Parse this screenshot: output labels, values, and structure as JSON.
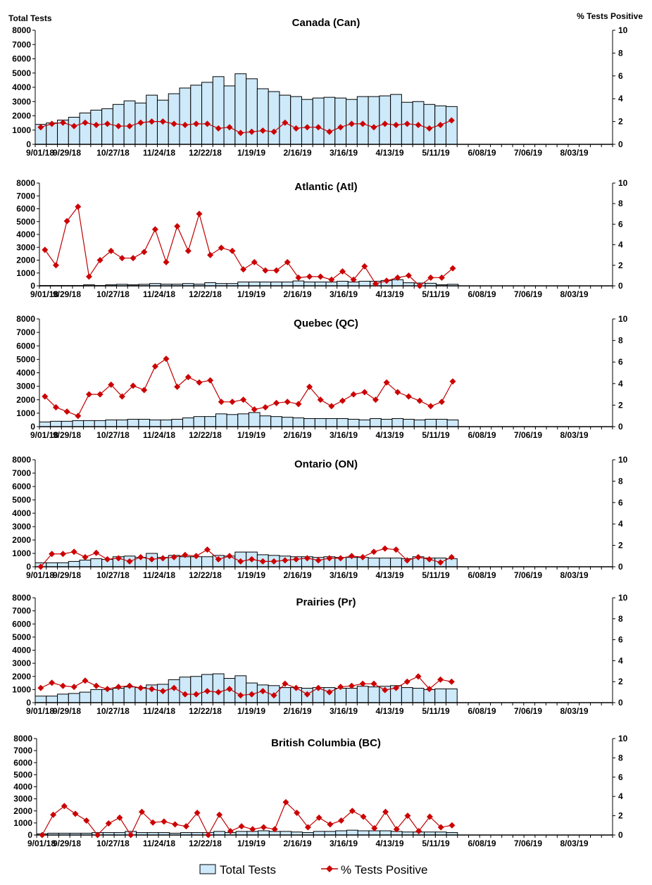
{
  "axis_titles": {
    "left": "Total Tests",
    "right": "% Tests Positive"
  },
  "legend": {
    "bars": "Total Tests",
    "line": "% Tests Positive",
    "placement": "bottom"
  },
  "colors": {
    "bar_fill": "#cde9fa",
    "bar_stroke": "#000000",
    "line": "#c00000",
    "marker": "#cc0000"
  },
  "chart_data": [
    {
      "type": "bar+line",
      "title": "Canada (Can)",
      "x_tick_labels": [
        "9/01/18",
        "9/29/18",
        "10/27/18",
        "11/24/18",
        "12/22/18",
        "1/19/19",
        "2/16/19",
        "3/16/19",
        "4/13/19",
        "5/11/19",
        "6/08/19",
        "7/06/19",
        "8/03/19"
      ],
      "ylim_left": [
        0,
        8000
      ],
      "ylim_right": [
        0,
        10
      ],
      "weeks_on_axis": 52,
      "total_tests": [
        1400,
        1500,
        1700,
        1900,
        2200,
        2400,
        2500,
        2800,
        3050,
        2900,
        3450,
        3100,
        3550,
        3950,
        4150,
        4350,
        4750,
        4100,
        4950,
        4600,
        3900,
        3700,
        3450,
        3350,
        3150,
        3250,
        3300,
        3250,
        3150,
        3350,
        3350,
        3400,
        3500,
        2950,
        3000,
        2800,
        2700,
        2650
      ],
      "pct_positive": [
        1.5,
        1.8,
        1.9,
        1.6,
        1.9,
        1.7,
        1.8,
        1.6,
        1.6,
        1.9,
        2.0,
        2.0,
        1.8,
        1.7,
        1.8,
        1.8,
        1.4,
        1.5,
        1.0,
        1.1,
        1.2,
        1.1,
        1.9,
        1.4,
        1.5,
        1.5,
        1.1,
        1.5,
        1.8,
        1.8,
        1.5,
        1.8,
        1.7,
        1.8,
        1.7,
        1.4,
        1.7,
        2.1
      ]
    },
    {
      "type": "bar+line",
      "title": "Atlantic (Atl)",
      "ylim_left": [
        0,
        8000
      ],
      "ylim_right": [
        0,
        10
      ],
      "total_tests": [
        30,
        30,
        30,
        30,
        80,
        30,
        80,
        120,
        80,
        120,
        180,
        130,
        130,
        180,
        130,
        250,
        180,
        180,
        300,
        300,
        300,
        300,
        300,
        380,
        300,
        300,
        300,
        360,
        300,
        360,
        360,
        420,
        480,
        240,
        220,
        200,
        80,
        120
      ],
      "pct_positive": [
        3.5,
        2.0,
        6.3,
        7.7,
        0.9,
        2.5,
        3.4,
        2.7,
        2.7,
        3.3,
        5.5,
        2.3,
        5.8,
        3.4,
        7.0,
        3.0,
        3.7,
        3.4,
        1.6,
        2.3,
        1.5,
        1.5,
        2.3,
        0.8,
        0.9,
        0.9,
        0.6,
        1.4,
        0.6,
        1.9,
        0.2,
        0.5,
        0.8,
        1.0,
        0.0,
        0.8,
        0.8,
        1.7
      ]
    },
    {
      "type": "bar+line",
      "title": "Quebec (QC)",
      "ylim_left": [
        0,
        8000
      ],
      "ylim_right": [
        0,
        10
      ],
      "total_tests": [
        350,
        400,
        400,
        450,
        450,
        450,
        500,
        500,
        550,
        550,
        500,
        500,
        550,
        650,
        750,
        750,
        950,
        900,
        950,
        1050,
        800,
        750,
        700,
        650,
        600,
        600,
        600,
        600,
        550,
        500,
        600,
        550,
        600,
        550,
        500,
        550,
        550,
        500
      ],
      "pct_positive": [
        2.8,
        1.8,
        1.4,
        1.0,
        3.0,
        3.0,
        3.9,
        2.8,
        3.8,
        3.4,
        5.6,
        6.3,
        3.7,
        4.6,
        4.1,
        4.3,
        2.3,
        2.3,
        2.5,
        1.6,
        1.8,
        2.2,
        2.3,
        2.1,
        3.7,
        2.5,
        1.9,
        2.4,
        3.0,
        3.2,
        2.5,
        4.1,
        3.2,
        2.8,
        2.4,
        1.9,
        2.3,
        4.2
      ]
    },
    {
      "type": "bar+line",
      "title": "Ontario (ON)",
      "ylim_left": [
        0,
        8000
      ],
      "ylim_right": [
        0,
        10
      ],
      "total_tests": [
        300,
        300,
        300,
        400,
        500,
        600,
        550,
        750,
        800,
        700,
        1000,
        700,
        850,
        750,
        750,
        750,
        850,
        800,
        1100,
        1100,
        900,
        850,
        800,
        750,
        750,
        700,
        750,
        700,
        700,
        700,
        650,
        650,
        650,
        600,
        750,
        650,
        650,
        600
      ],
      "pct_positive": [
        0,
        1.2,
        1.2,
        1.4,
        0.9,
        1.3,
        0.7,
        0.8,
        0.5,
        0.9,
        0.7,
        0.8,
        0.9,
        1.1,
        1.0,
        1.6,
        0.7,
        1.0,
        0.5,
        0.7,
        0.5,
        0.5,
        0.6,
        0.7,
        0.8,
        0.6,
        0.8,
        0.8,
        1.0,
        0.9,
        1.4,
        1.7,
        1.6,
        0.6,
        0.9,
        0.7,
        0.4,
        0.9
      ]
    },
    {
      "type": "bar+line",
      "title": "Prairies (Pr)",
      "ylim_left": [
        0,
        8000
      ],
      "ylim_right": [
        0,
        10
      ],
      "total_tests": [
        500,
        500,
        650,
        700,
        800,
        1000,
        1000,
        1100,
        1200,
        1150,
        1350,
        1400,
        1750,
        1950,
        2000,
        2150,
        2200,
        1850,
        2050,
        1500,
        1350,
        1300,
        1150,
        1150,
        1100,
        1150,
        1150,
        1100,
        1100,
        1250,
        1200,
        1250,
        1300,
        1150,
        1100,
        1000,
        1050,
        1050
      ],
      "pct_positive": [
        1.4,
        1.9,
        1.6,
        1.5,
        2.1,
        1.6,
        1.3,
        1.5,
        1.6,
        1.4,
        1.3,
        1.1,
        1.4,
        0.8,
        0.8,
        1.1,
        1.0,
        1.3,
        0.7,
        0.8,
        1.1,
        0.7,
        1.8,
        1.4,
        0.8,
        1.4,
        1.0,
        1.5,
        1.6,
        1.8,
        1.8,
        1.2,
        1.4,
        2.0,
        2.5,
        1.3,
        2.2,
        2.0
      ]
    },
    {
      "type": "bar+line",
      "title": "British Columbia (BC)",
      "ylim_left": [
        0,
        8000
      ],
      "ylim_right": [
        0,
        10
      ],
      "total_tests": [
        100,
        150,
        150,
        150,
        150,
        200,
        200,
        200,
        300,
        200,
        200,
        200,
        150,
        200,
        200,
        200,
        300,
        200,
        300,
        300,
        350,
        300,
        300,
        250,
        200,
        300,
        300,
        350,
        400,
        350,
        350,
        350,
        300,
        250,
        250,
        250,
        250,
        200
      ],
      "pct_positive": [
        0,
        2.1,
        3.0,
        2.2,
        1.5,
        0,
        1.2,
        1.8,
        0,
        2.4,
        1.3,
        1.4,
        1.1,
        0.9,
        2.3,
        0,
        2.1,
        0.4,
        0.9,
        0.6,
        0.8,
        0.6,
        3.4,
        2.3,
        0.8,
        1.8,
        1.1,
        1.5,
        2.5,
        1.9,
        0.7,
        2.4,
        0.6,
        2.0,
        0.4,
        1.9,
        0.8,
        1.0
      ]
    }
  ]
}
